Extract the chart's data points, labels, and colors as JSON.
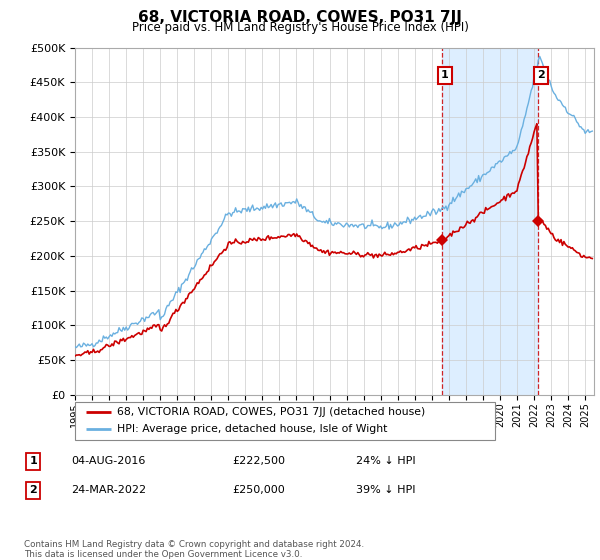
{
  "title": "68, VICTORIA ROAD, COWES, PO31 7JJ",
  "subtitle": "Price paid vs. HM Land Registry's House Price Index (HPI)",
  "ylim": [
    0,
    500000
  ],
  "yticks": [
    0,
    50000,
    100000,
    150000,
    200000,
    250000,
    300000,
    350000,
    400000,
    450000,
    500000
  ],
  "ytick_labels": [
    "£0",
    "£50K",
    "£100K",
    "£150K",
    "£200K",
    "£250K",
    "£300K",
    "£350K",
    "£400K",
    "£450K",
    "£500K"
  ],
  "xlim_start": 1995.0,
  "xlim_end": 2025.5,
  "sale1_year": 2016.583,
  "sale1_price": 222500,
  "sale1_label": "04-AUG-2016",
  "sale1_amount": "£222,500",
  "sale1_hpi": "24% ↓ HPI",
  "sale2_year": 2022.22,
  "sale2_price": 250000,
  "sale2_label": "24-MAR-2022",
  "sale2_amount": "£250,000",
  "sale2_hpi": "39% ↓ HPI",
  "red_line_color": "#cc0000",
  "blue_line_color": "#6ab0e0",
  "fill_color": "#ddeeff",
  "grid_color": "#cccccc",
  "legend_line1": "68, VICTORIA ROAD, COWES, PO31 7JJ (detached house)",
  "legend_line2": "HPI: Average price, detached house, Isle of Wight",
  "footnote": "Contains HM Land Registry data © Crown copyright and database right 2024.\nThis data is licensed under the Open Government Licence v3.0."
}
